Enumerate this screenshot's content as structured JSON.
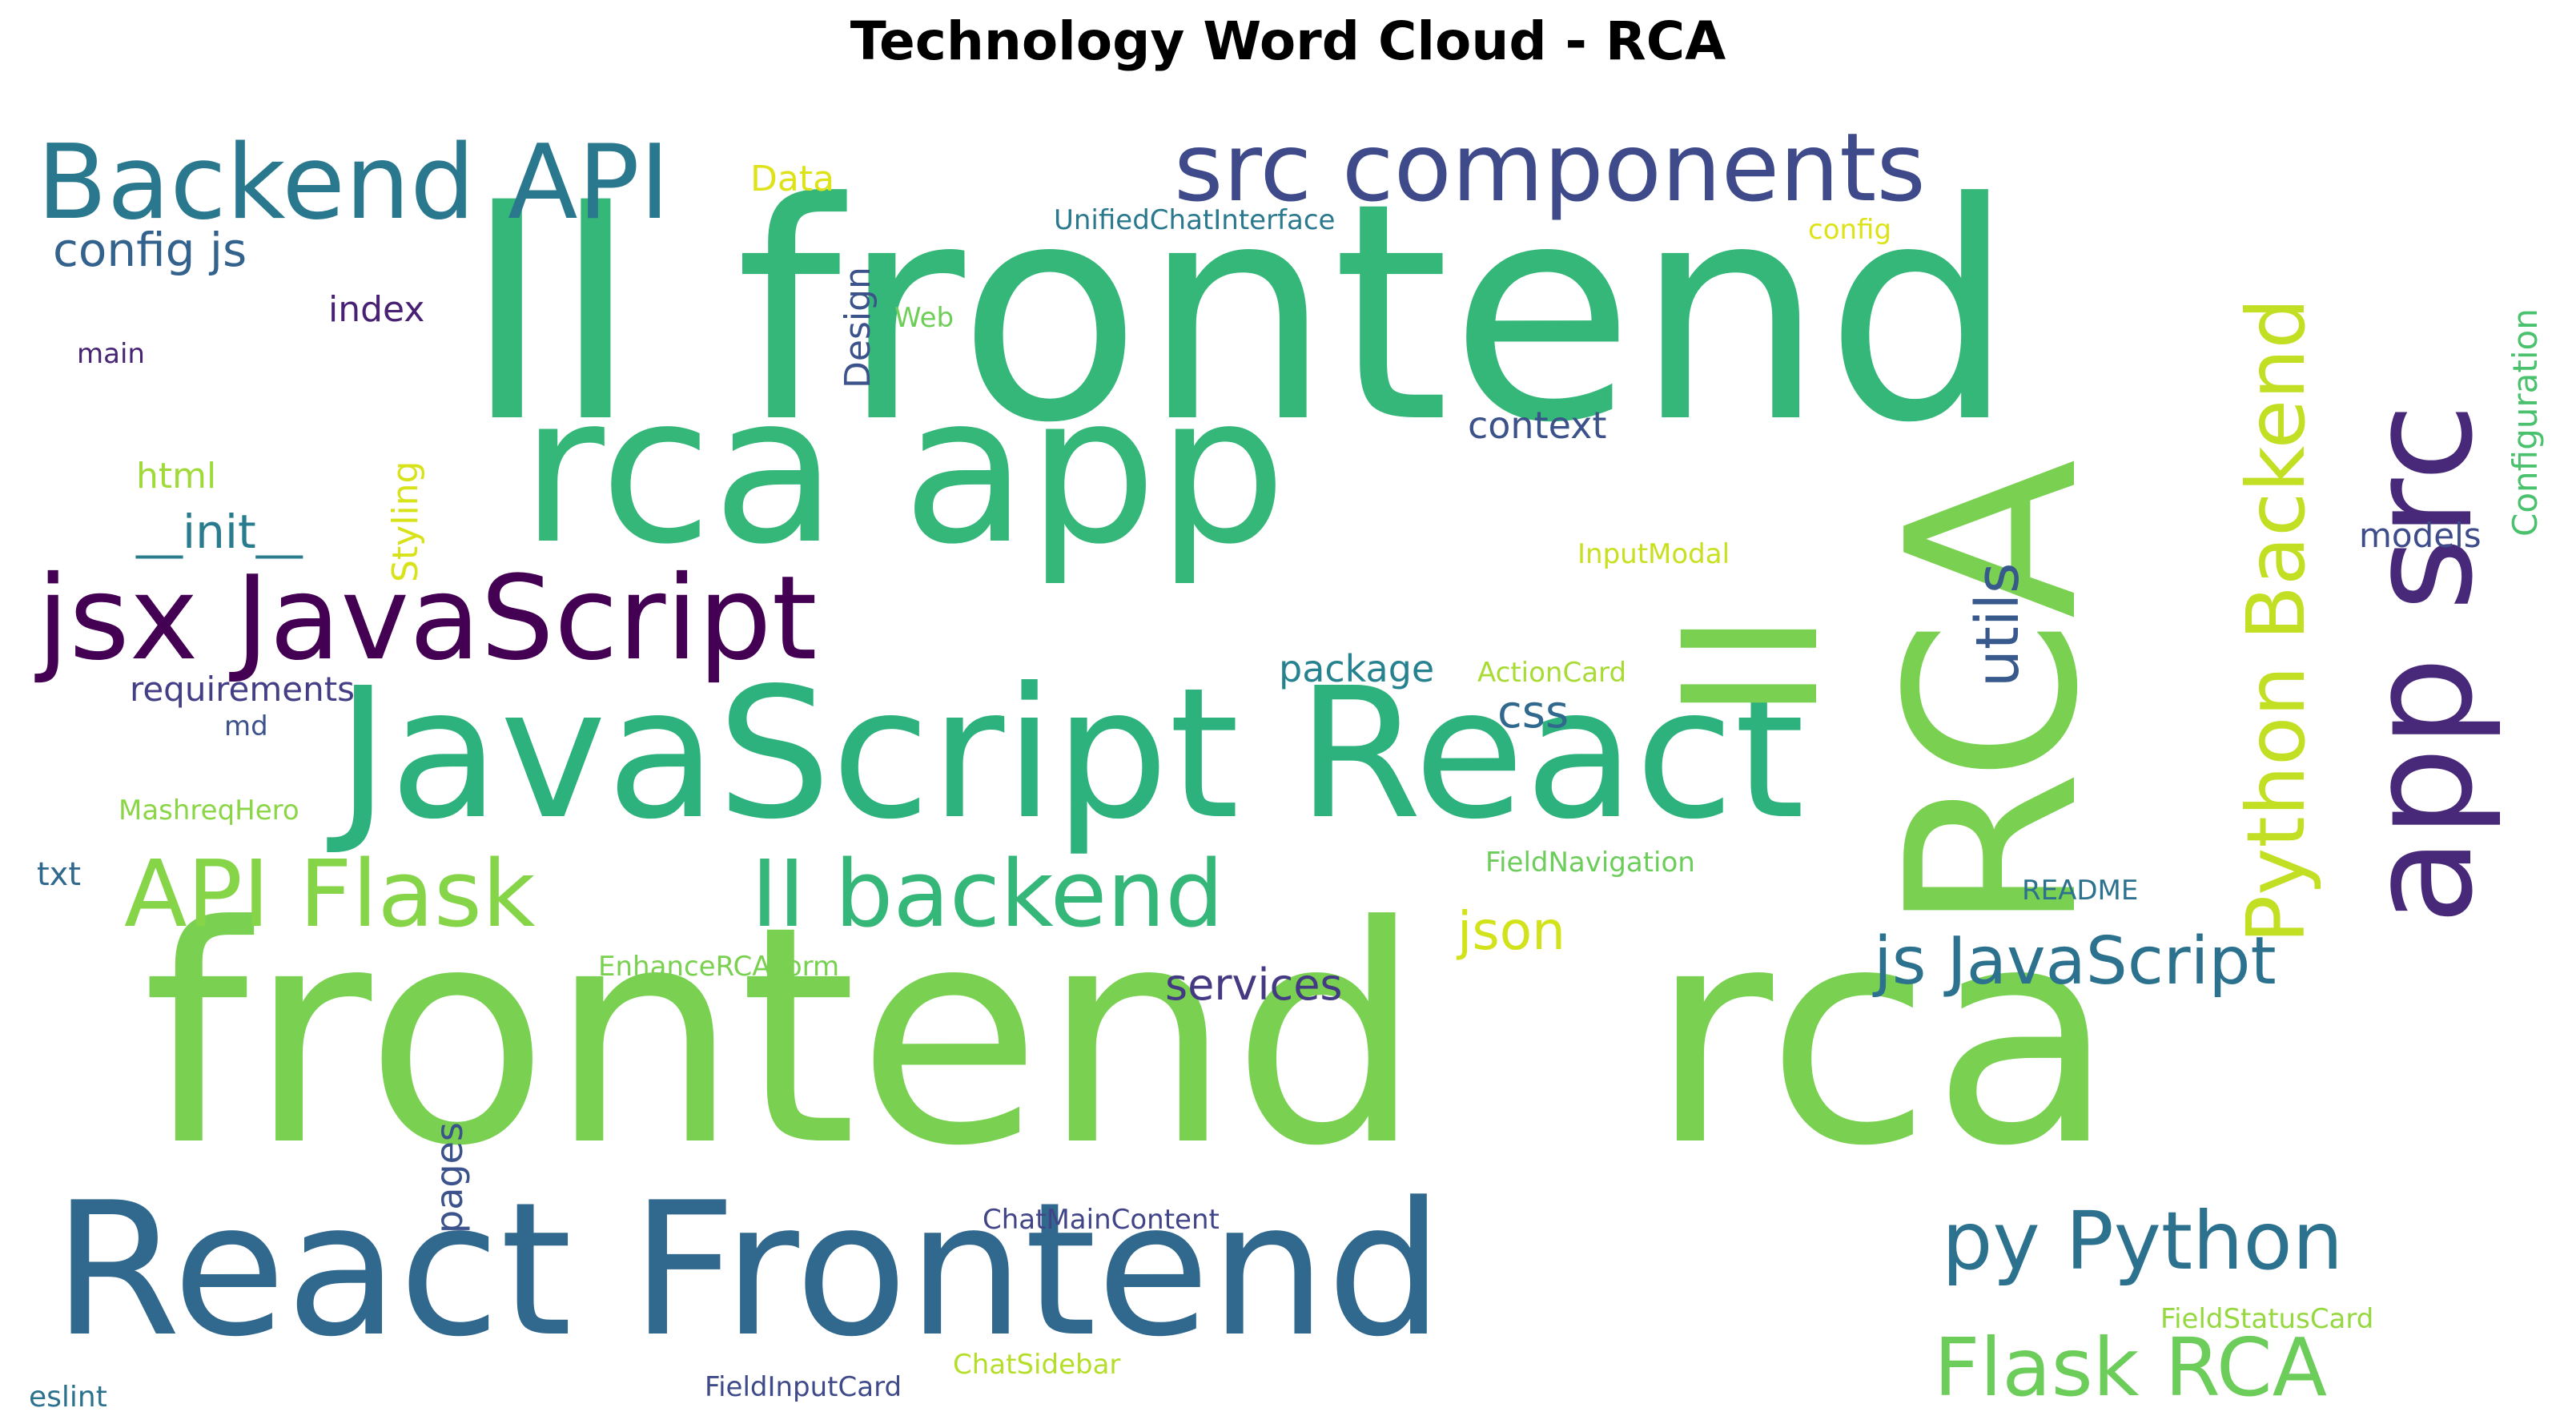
{
  "title": "Technology Word Cloud - RCA",
  "words": [
    {
      "text": "frontend",
      "color": "#7ad151",
      "rotated": false
    },
    {
      "text": "rca",
      "color": "#7ad151",
      "rotated": false
    },
    {
      "text": "RCA",
      "color": "#7ad151",
      "rotated": true
    },
    {
      "text": "II frontend",
      "color": "#35b779",
      "rotated": false
    },
    {
      "text": "JavaScript React",
      "color": "#2db27d",
      "rotated": false
    },
    {
      "text": "rca app",
      "color": "#35b779",
      "rotated": false
    },
    {
      "text": "React Frontend",
      "color": "#31688e",
      "rotated": false
    },
    {
      "text": "app src",
      "color": "#482878",
      "rotated": true
    },
    {
      "text": "II",
      "color": "#7ad151",
      "rotated": true
    },
    {
      "text": "jsx JavaScript",
      "color": "#440154",
      "rotated": false
    },
    {
      "text": "Backend API",
      "color": "#2a788e",
      "rotated": false
    },
    {
      "text": "src components",
      "color": "#3e4a89",
      "rotated": false
    },
    {
      "text": "Python Backend",
      "color": "#c2df23",
      "rotated": true
    },
    {
      "text": "II backend",
      "color": "#35b779",
      "rotated": false
    },
    {
      "text": "API Flask",
      "color": "#86d549",
      "rotated": false
    },
    {
      "text": "py Python",
      "color": "#2c728e",
      "rotated": false
    },
    {
      "text": "Flask RCA",
      "color": "#6ccd5a",
      "rotated": false
    },
    {
      "text": "js JavaScript",
      "color": "#2c728e",
      "rotated": false
    },
    {
      "text": "utils",
      "color": "#38598c",
      "rotated": true
    },
    {
      "text": "config js",
      "color": "#33638d",
      "rotated": false
    },
    {
      "text": "json",
      "color": "#d2e21b",
      "rotated": false
    },
    {
      "text": "services",
      "color": "#443983",
      "rotated": false
    },
    {
      "text": "css",
      "color": "#31688e",
      "rotated": false
    },
    {
      "text": "package",
      "color": "#26828e",
      "rotated": false
    },
    {
      "text": "__init__",
      "color": "#287c8e",
      "rotated": false
    },
    {
      "text": "context",
      "color": "#3b528b",
      "rotated": false
    },
    {
      "text": "Data",
      "color": "#dde318",
      "rotated": false
    },
    {
      "text": "Design",
      "color": "#3b528b",
      "rotated": true
    },
    {
      "text": "index",
      "color": "#482173",
      "rotated": false
    },
    {
      "text": "html",
      "color": "#a0da39",
      "rotated": false
    },
    {
      "text": "requirements",
      "color": "#433e85",
      "rotated": false
    },
    {
      "text": "Styling",
      "color": "#d8e219",
      "rotated": true
    },
    {
      "text": "pages",
      "color": "#3b528b",
      "rotated": true
    },
    {
      "text": "models",
      "color": "#3e4c8a",
      "rotated": false
    },
    {
      "text": "Configuration",
      "color": "#4ac16d",
      "rotated": true
    },
    {
      "text": "UnifiedChatInterface",
      "color": "#2a788e",
      "rotated": false
    },
    {
      "text": "config",
      "color": "#dde318",
      "rotated": false
    },
    {
      "text": "Web",
      "color": "#6ece58",
      "rotated": false
    },
    {
      "text": "main",
      "color": "#482475",
      "rotated": false
    },
    {
      "text": "md",
      "color": "#3b528b",
      "rotated": false
    },
    {
      "text": "txt",
      "color": "#31688e",
      "rotated": false
    },
    {
      "text": "MashreqHero",
      "color": "#8bd646",
      "rotated": false
    },
    {
      "text": "InputModal",
      "color": "#c8e020",
      "rotated": false
    },
    {
      "text": "ActionCard",
      "color": "#a8db34",
      "rotated": false
    },
    {
      "text": "FieldNavigation",
      "color": "#6ccd5a",
      "rotated": false
    },
    {
      "text": "README",
      "color": "#2c728e",
      "rotated": false
    },
    {
      "text": "EnhanceRCAForm",
      "color": "#7ad151",
      "rotated": false
    },
    {
      "text": "ChatMainContent",
      "color": "#414487",
      "rotated": false
    },
    {
      "text": "FieldStatusCard",
      "color": "#95d840",
      "rotated": false
    },
    {
      "text": "ChatSidebar",
      "color": "#b5de2b",
      "rotated": false
    },
    {
      "text": "FieldInputCard",
      "color": "#3e4a89",
      "rotated": false
    },
    {
      "text": "eslint",
      "color": "#2c728e",
      "rotated": false
    }
  ]
}
